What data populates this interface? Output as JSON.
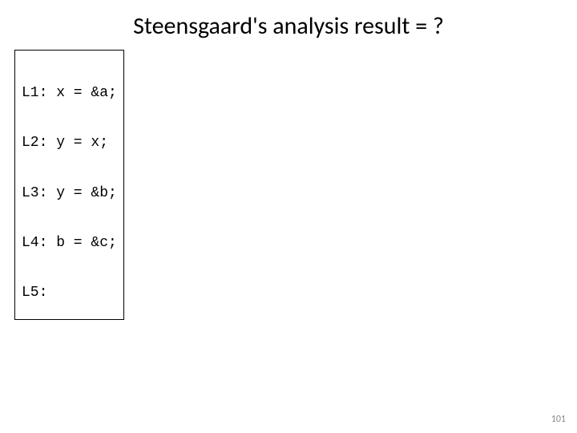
{
  "title": "Steensgaard's analysis result = ?",
  "code": {
    "lines": [
      "L1: x = &a;",
      "L2: y = x;",
      "L3: y = &b;",
      "L4: b = &c;",
      "L5:"
    ]
  },
  "page_number": "101",
  "colors": {
    "background": "#ffffff",
    "text": "#000000",
    "page_num": "#888888",
    "border": "#000000"
  },
  "typography": {
    "title_fontsize": 30,
    "code_fontsize": 18,
    "page_num_fontsize": 12,
    "title_font": "Calibri",
    "code_font": "Courier New"
  }
}
